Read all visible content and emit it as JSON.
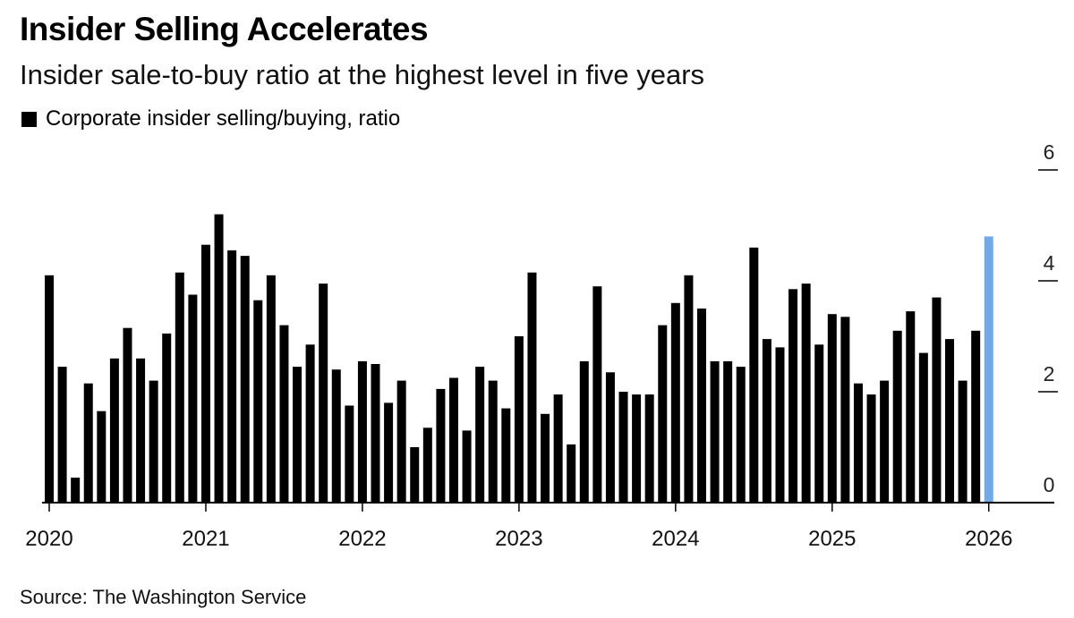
{
  "header": {
    "title": "Insider Selling Accelerates",
    "subtitle": "Insider sale-to-buy ratio at the highest level in five years"
  },
  "legend": {
    "label": "Corporate insider selling/buying, ratio"
  },
  "source": "Source: The Washington Service",
  "colors": {
    "bar": "#000000",
    "highlight": "#6fa9e8",
    "axis": "#000000"
  },
  "chart_data": {
    "type": "bar",
    "title": "Insider Selling Accelerates",
    "subtitle": "Insider sale-to-buy ratio at the highest level in five years",
    "xlabel": "",
    "ylabel": "Corporate insider selling/buying, ratio",
    "ylim": [
      0,
      6
    ],
    "y_ticks": [
      "0",
      "2",
      "4",
      "6"
    ],
    "y_axis_side": "right",
    "x_ticks": [
      "2020",
      "2021",
      "2022",
      "2023",
      "2024",
      "2025",
      "2026"
    ],
    "legend_position": "top-left",
    "series": [
      {
        "name": "Corporate insider selling/buying, ratio",
        "start": "2020-01",
        "frequency": "monthly",
        "values": [
          4.1,
          2.45,
          0.45,
          2.15,
          1.65,
          2.6,
          3.15,
          2.6,
          2.2,
          3.05,
          4.15,
          3.75,
          4.65,
          5.2,
          4.55,
          4.45,
          3.65,
          4.1,
          3.2,
          2.45,
          2.85,
          3.95,
          2.4,
          1.75,
          2.55,
          2.5,
          1.8,
          2.2,
          1.0,
          1.35,
          2.05,
          2.25,
          1.3,
          2.45,
          2.2,
          1.7,
          3.0,
          4.15,
          1.6,
          1.95,
          1.05,
          2.55,
          3.9,
          2.35,
          2.0,
          1.95,
          1.95,
          3.2,
          3.6,
          4.1,
          3.5,
          2.55,
          2.55,
          2.45,
          4.6,
          2.95,
          2.8,
          3.85,
          3.95,
          2.85,
          3.4,
          3.35,
          2.15,
          1.95,
          2.2,
          3.1,
          3.45,
          2.7,
          3.7,
          2.95,
          2.2,
          3.1,
          4.8
        ],
        "highlight_last": true
      }
    ]
  }
}
